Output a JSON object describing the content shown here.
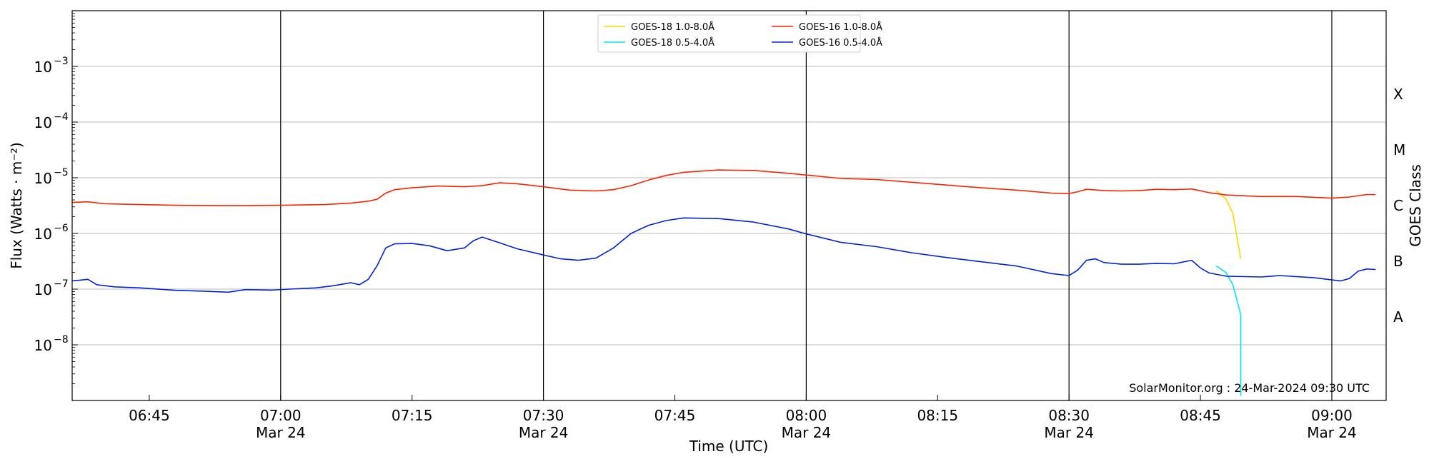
{
  "chart_data": {
    "type": "line",
    "xlabel": "Time (UTC)",
    "ylabel": "Flux (Watts · m⁻²)",
    "y2label": "GOES Class",
    "yscale": "log",
    "ylim": [
      1e-09,
      0.01
    ],
    "xlim_minutes_after_0630": [
      6.2,
      156.2
    ],
    "x_ticks": [
      {
        "m": 15,
        "label": "06:45",
        "sub": ""
      },
      {
        "m": 30,
        "label": "07:00",
        "sub": "Mar 24"
      },
      {
        "m": 45,
        "label": "07:15",
        "sub": ""
      },
      {
        "m": 60,
        "label": "07:30",
        "sub": "Mar 24"
      },
      {
        "m": 75,
        "label": "07:45",
        "sub": ""
      },
      {
        "m": 90,
        "label": "08:00",
        "sub": "Mar 24"
      },
      {
        "m": 105,
        "label": "08:15",
        "sub": ""
      },
      {
        "m": 120,
        "label": "08:30",
        "sub": "Mar 24"
      },
      {
        "m": 135,
        "label": "08:45",
        "sub": ""
      },
      {
        "m": 150,
        "label": "09:00",
        "sub": "Mar 24"
      }
    ],
    "y_ticks": [
      {
        "exp": -8,
        "label": "10",
        "sup": "−8"
      },
      {
        "exp": -7,
        "label": "10",
        "sup": "−7"
      },
      {
        "exp": -6,
        "label": "10",
        "sup": "−6"
      },
      {
        "exp": -5,
        "label": "10",
        "sup": "−5"
      },
      {
        "exp": -4,
        "label": "10",
        "sup": "−4"
      },
      {
        "exp": -3,
        "label": "10",
        "sup": "−3"
      }
    ],
    "goes_classes": [
      {
        "label": "A",
        "exp": -7.5
      },
      {
        "label": "B",
        "exp": -6.5
      },
      {
        "label": "C",
        "exp": -5.5
      },
      {
        "label": "M",
        "exp": -4.5
      },
      {
        "label": "X",
        "exp": -3.5
      }
    ],
    "vlines_minutes": [
      30,
      60,
      90,
      120,
      150
    ],
    "annotation": "SolarMonitor.org : 24-Mar-2024 09:30 UTC",
    "legend_placement": "top-center",
    "series": [
      {
        "name": "GOES-18 1.0-8.0Å",
        "color": "#ffd700",
        "points": [
          [
            136.8,
            5.9e-06
          ],
          [
            137.9,
            4.2e-06
          ],
          [
            138.7,
            2.3e-06
          ],
          [
            139.6,
            3.5e-07
          ]
        ]
      },
      {
        "name": "GOES-18 0.5-4.0Å",
        "color": "#00e5ee",
        "points": [
          [
            136.8,
            2.6e-07
          ],
          [
            137.9,
            2e-07
          ],
          [
            138.7,
            1.2e-07
          ],
          [
            139.6,
            3.5e-08
          ],
          [
            139.6,
            1.2e-09
          ]
        ]
      },
      {
        "name": "GOES-16 1.0-8.0Å",
        "color": "#ff2200",
        "points": [
          [
            6.2,
            3.6e-06
          ],
          [
            8,
            3.7e-06
          ],
          [
            10,
            3.4e-06
          ],
          [
            14,
            3.3e-06
          ],
          [
            18,
            3.2e-06
          ],
          [
            25,
            3.15e-06
          ],
          [
            30,
            3.2e-06
          ],
          [
            35,
            3.3e-06
          ],
          [
            38,
            3.5e-06
          ],
          [
            40,
            3.8e-06
          ],
          [
            41,
            4.1e-06
          ],
          [
            42,
            5.3e-06
          ],
          [
            43,
            6.1e-06
          ],
          [
            45,
            6.6e-06
          ],
          [
            48,
            7.1e-06
          ],
          [
            51,
            6.9e-06
          ],
          [
            53,
            7.2e-06
          ],
          [
            55,
            8.1e-06
          ],
          [
            57,
            7.8e-06
          ],
          [
            60,
            6.9e-06
          ],
          [
            63,
            6e-06
          ],
          [
            66,
            5.8e-06
          ],
          [
            68,
            6.1e-06
          ],
          [
            70,
            7.2e-06
          ],
          [
            72,
            9.1e-06
          ],
          [
            74,
            1.1e-05
          ],
          [
            76,
            1.25e-05
          ],
          [
            80,
            1.38e-05
          ],
          [
            84,
            1.35e-05
          ],
          [
            88,
            1.2e-05
          ],
          [
            90,
            1.12e-05
          ],
          [
            94,
            9.7e-06
          ],
          [
            98,
            9.3e-06
          ],
          [
            102,
            8.3e-06
          ],
          [
            106,
            7.4e-06
          ],
          [
            110,
            6.6e-06
          ],
          [
            114,
            6e-06
          ],
          [
            118,
            5.3e-06
          ],
          [
            120,
            5.2e-06
          ],
          [
            121,
            5.6e-06
          ],
          [
            122,
            6.2e-06
          ],
          [
            124,
            5.9e-06
          ],
          [
            126,
            5.8e-06
          ],
          [
            128,
            5.9e-06
          ],
          [
            130,
            6.2e-06
          ],
          [
            132,
            6.1e-06
          ],
          [
            134,
            6.3e-06
          ],
          [
            136,
            5.4e-06
          ],
          [
            138,
            4.9e-06
          ],
          [
            142,
            4.6e-06
          ],
          [
            146,
            4.6e-06
          ],
          [
            150,
            4.3e-06
          ],
          [
            152,
            4.5e-06
          ],
          [
            154,
            5e-06
          ],
          [
            155,
            5e-06
          ]
        ]
      },
      {
        "name": "GOES-16 0.5-4.0Å",
        "color": "#0022dd",
        "points": [
          [
            6.2,
            1.4e-07
          ],
          [
            8,
            1.5e-07
          ],
          [
            9,
            1.2e-07
          ],
          [
            11,
            1.1e-07
          ],
          [
            14,
            1.05e-07
          ],
          [
            18,
            9.5e-08
          ],
          [
            21,
            9.2e-08
          ],
          [
            24,
            8.8e-08
          ],
          [
            26,
            9.8e-08
          ],
          [
            29,
            9.6e-08
          ],
          [
            31,
            1e-07
          ],
          [
            34,
            1.05e-07
          ],
          [
            36,
            1.15e-07
          ],
          [
            38,
            1.3e-07
          ],
          [
            39,
            1.2e-07
          ],
          [
            40,
            1.5e-07
          ],
          [
            41,
            2.6e-07
          ],
          [
            42,
            5.5e-07
          ],
          [
            43,
            6.5e-07
          ],
          [
            45,
            6.6e-07
          ],
          [
            47,
            6e-07
          ],
          [
            49,
            4.9e-07
          ],
          [
            51,
            5.5e-07
          ],
          [
            52,
            7.4e-07
          ],
          [
            53,
            8.6e-07
          ],
          [
            55,
            6.8e-07
          ],
          [
            57,
            5.3e-07
          ],
          [
            60,
            4.1e-07
          ],
          [
            62,
            3.5e-07
          ],
          [
            64,
            3.3e-07
          ],
          [
            66,
            3.6e-07
          ],
          [
            68,
            5.5e-07
          ],
          [
            70,
            1e-06
          ],
          [
            72,
            1.4e-06
          ],
          [
            74,
            1.7e-06
          ],
          [
            76,
            1.9e-06
          ],
          [
            80,
            1.85e-06
          ],
          [
            84,
            1.6e-06
          ],
          [
            88,
            1.2e-06
          ],
          [
            90,
            9.8e-07
          ],
          [
            94,
            6.9e-07
          ],
          [
            98,
            5.8e-07
          ],
          [
            102,
            4.5e-07
          ],
          [
            106,
            3.7e-07
          ],
          [
            110,
            3.1e-07
          ],
          [
            114,
            2.6e-07
          ],
          [
            118,
            1.9e-07
          ],
          [
            120,
            1.75e-07
          ],
          [
            121,
            2.2e-07
          ],
          [
            122,
            3.3e-07
          ],
          [
            123,
            3.5e-07
          ],
          [
            124,
            3e-07
          ],
          [
            126,
            2.8e-07
          ],
          [
            128,
            2.8e-07
          ],
          [
            130,
            2.9e-07
          ],
          [
            132,
            2.85e-07
          ],
          [
            134,
            3.3e-07
          ],
          [
            135,
            2.4e-07
          ],
          [
            136,
            1.95e-07
          ],
          [
            138,
            1.7e-07
          ],
          [
            142,
            1.65e-07
          ],
          [
            144,
            1.75e-07
          ],
          [
            148,
            1.6e-07
          ],
          [
            151,
            1.4e-07
          ],
          [
            152,
            1.55e-07
          ],
          [
            153,
            2.1e-07
          ],
          [
            154,
            2.3e-07
          ],
          [
            155,
            2.25e-07
          ]
        ]
      }
    ]
  }
}
